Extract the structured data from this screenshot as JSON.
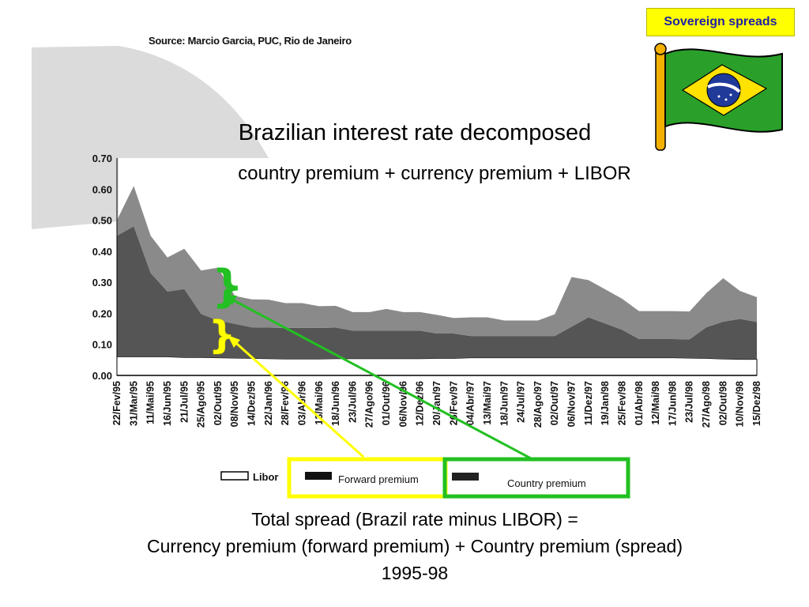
{
  "badge": "Sovereign spreads",
  "source": "Source: Marcio Garcia, PUC, Rio de Janeiro",
  "title": "Brazilian interest rate decomposed",
  "subtitle": "country premium + currency premium + LIBOR",
  "caption": {
    "line1": "Total spread (Brazil rate minus LIBOR) =",
    "line2": "Currency premium (forward premium) + Country premium (spread)",
    "line3": "1995-98"
  },
  "legend": {
    "libor": "Libor",
    "forward": "Forward premium",
    "country": "Country premium"
  },
  "colors": {
    "libor": "#ffffff",
    "forward": "#555555",
    "country": "#8a8a8a",
    "yellow_box": "#ffff00",
    "green_box": "#22c022",
    "badge_bg": "#ffff00",
    "badge_text": "#1f1fa8"
  },
  "chart_data": {
    "type": "area",
    "stacked": true,
    "ylim": [
      0,
      0.7
    ],
    "yticks": [
      "0.00",
      "0.10",
      "0.20",
      "0.30",
      "0.40",
      "0.50",
      "0.60",
      "0.70"
    ],
    "x": [
      "22/Fev/95",
      "31/Mar/95",
      "11/Mai/95",
      "16/Jun/95",
      "21/Jul/95",
      "25/Ago/95",
      "02/Out/95",
      "08/Nov/95",
      "14/Dez/95",
      "22/Jan/96",
      "28/Fev/96",
      "03/Abr/96",
      "13/Mai/96",
      "18/Jun/96",
      "23/Jul/96",
      "27/Ago/96",
      "01/Out/96",
      "06/Nov/96",
      "12/Dez/96",
      "20/Jan/97",
      "26/Fev/97",
      "04/Abr/97",
      "13/Mai/97",
      "18/Jun/97",
      "24/Jul/97",
      "28/Ago/97",
      "02/Out/97",
      "06/Nov/97",
      "11/Dez/97",
      "19/Jan/98",
      "25/Fev/98",
      "01/Abr/98",
      "12/Mai/98",
      "17/Jun/98",
      "23/Jul/98",
      "27/Ago/98",
      "02/Out/98",
      "10/Nov/98",
      "15/Dez/98"
    ],
    "series": [
      {
        "name": "Libor",
        "values": [
          0.06,
          0.06,
          0.06,
          0.06,
          0.058,
          0.058,
          0.057,
          0.056,
          0.055,
          0.054,
          0.053,
          0.053,
          0.053,
          0.054,
          0.054,
          0.054,
          0.054,
          0.054,
          0.054,
          0.055,
          0.055,
          0.057,
          0.057,
          0.057,
          0.057,
          0.057,
          0.057,
          0.057,
          0.057,
          0.057,
          0.057,
          0.057,
          0.057,
          0.057,
          0.056,
          0.055,
          0.053,
          0.052,
          0.052
        ]
      },
      {
        "name": "Forward premium",
        "values": [
          0.39,
          0.42,
          0.27,
          0.21,
          0.22,
          0.14,
          0.12,
          0.11,
          0.1,
          0.1,
          0.1,
          0.1,
          0.1,
          0.1,
          0.09,
          0.09,
          0.09,
          0.09,
          0.09,
          0.08,
          0.08,
          0.07,
          0.07,
          0.07,
          0.07,
          0.07,
          0.07,
          0.1,
          0.13,
          0.11,
          0.09,
          0.06,
          0.06,
          0.06,
          0.06,
          0.1,
          0.12,
          0.13,
          0.12
        ]
      },
      {
        "name": "Country premium",
        "values": [
          0.05,
          0.13,
          0.12,
          0.11,
          0.13,
          0.14,
          0.17,
          0.09,
          0.09,
          0.09,
          0.08,
          0.08,
          0.07,
          0.07,
          0.06,
          0.06,
          0.07,
          0.06,
          0.06,
          0.06,
          0.05,
          0.06,
          0.06,
          0.05,
          0.05,
          0.05,
          0.07,
          0.16,
          0.12,
          0.11,
          0.1,
          0.09,
          0.09,
          0.09,
          0.09,
          0.11,
          0.14,
          0.09,
          0.08
        ]
      }
    ]
  }
}
